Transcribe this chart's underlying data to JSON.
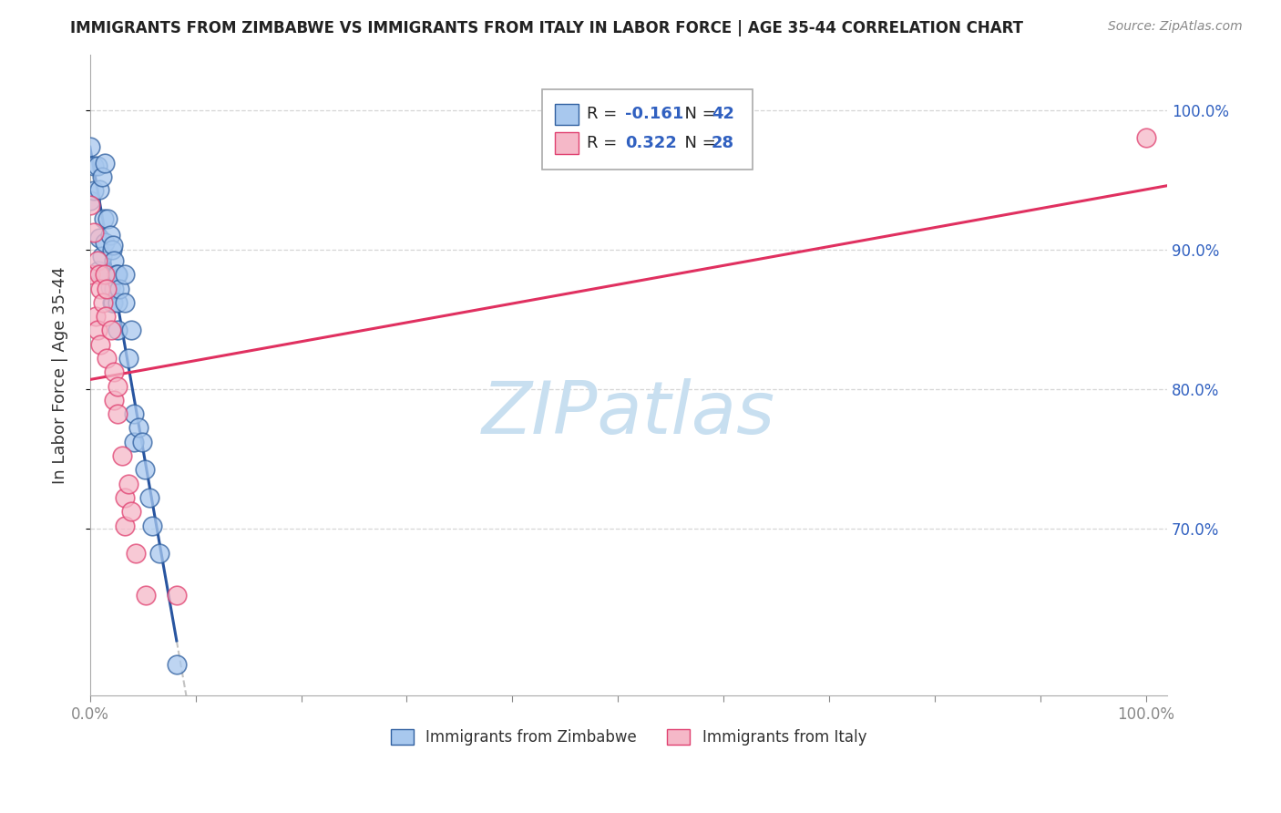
{
  "title": "IMMIGRANTS FROM ZIMBABWE VS IMMIGRANTS FROM ITALY IN LABOR FORCE | AGE 35-44 CORRELATION CHART",
  "source": "Source: ZipAtlas.com",
  "ylabel": "In Labor Force | Age 35-44",
  "y_tick_vals": [
    1.0,
    0.9,
    0.8,
    0.7
  ],
  "y_tick_labels": [
    "100.0%",
    "90.0%",
    "80.0%",
    "70.0%"
  ],
  "x_tick_labels": [
    "0.0%",
    "100.0%"
  ],
  "r_zim": "-0.161",
  "n_zim": "42",
  "r_ita": "0.322",
  "n_ita": "28",
  "color_zimbabwe_fill": "#A8C8EE",
  "color_zimbabwe_edge": "#3060A0",
  "color_italy_fill": "#F5B8C8",
  "color_italy_edge": "#E04070",
  "line_color_zimbabwe": "#2855A0",
  "line_color_italy": "#E03060",
  "watermark_color": "#C8DFF0",
  "zimbabwe_x": [
    0.0,
    0.0,
    0.004,
    0.004,
    0.007,
    0.008,
    0.009,
    0.009,
    0.011,
    0.011,
    0.013,
    0.014,
    0.014,
    0.016,
    0.017,
    0.017,
    0.019,
    0.019,
    0.021,
    0.021,
    0.022,
    0.022,
    0.023,
    0.023,
    0.025,
    0.026,
    0.026,
    0.026,
    0.028,
    0.033,
    0.033,
    0.036,
    0.039,
    0.042,
    0.042,
    0.046,
    0.049,
    0.052,
    0.056,
    0.059,
    0.066,
    0.082
  ],
  "zimbabwe_y": [
    0.974,
    0.935,
    0.96,
    0.942,
    0.96,
    0.885,
    0.943,
    0.908,
    0.952,
    0.895,
    0.922,
    0.962,
    0.905,
    0.882,
    0.922,
    0.882,
    0.91,
    0.873,
    0.9,
    0.862,
    0.903,
    0.862,
    0.892,
    0.872,
    0.882,
    0.882,
    0.862,
    0.842,
    0.872,
    0.882,
    0.862,
    0.822,
    0.842,
    0.782,
    0.762,
    0.772,
    0.762,
    0.742,
    0.722,
    0.702,
    0.682,
    0.602
  ],
  "italy_x": [
    0.0,
    0.0,
    0.004,
    0.005,
    0.007,
    0.007,
    0.009,
    0.01,
    0.01,
    0.012,
    0.014,
    0.015,
    0.016,
    0.016,
    0.02,
    0.023,
    0.023,
    0.026,
    0.026,
    0.03,
    0.033,
    0.033,
    0.036,
    0.039,
    0.043,
    0.053,
    0.082,
    1.0
  ],
  "italy_y": [
    0.932,
    0.882,
    0.912,
    0.852,
    0.892,
    0.842,
    0.882,
    0.872,
    0.832,
    0.862,
    0.882,
    0.852,
    0.872,
    0.822,
    0.842,
    0.812,
    0.792,
    0.802,
    0.782,
    0.752,
    0.722,
    0.702,
    0.732,
    0.712,
    0.682,
    0.652,
    0.652,
    0.98
  ],
  "xlim": [
    0.0,
    1.02
  ],
  "ylim": [
    0.58,
    1.04
  ]
}
